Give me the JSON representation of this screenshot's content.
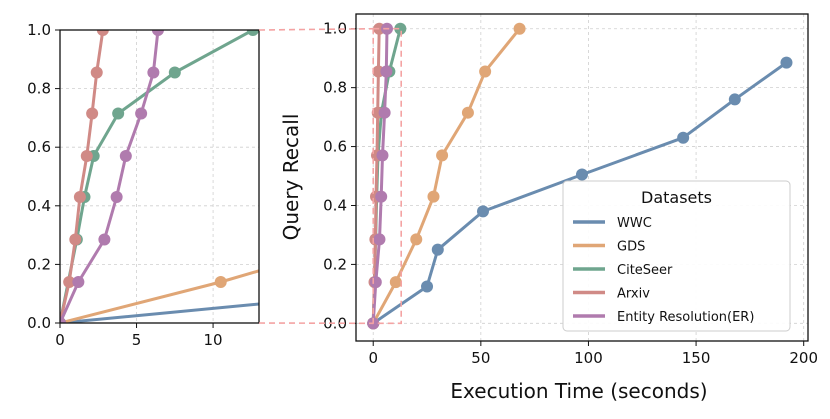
{
  "chart_data": {
    "type": "line",
    "xlabel": "Execution Time (seconds)",
    "ylabel": "Query Recall",
    "legend": {
      "title": "Datasets",
      "placement": "lower-right"
    },
    "main": {
      "xlim": [
        -8,
        202
      ],
      "ylim": [
        -0.06,
        1.05
      ],
      "xticks": [
        "0",
        "50",
        "100",
        "150",
        "200"
      ],
      "yticks": [
        "0.0",
        "0.2",
        "0.4",
        "0.6",
        "0.8",
        "1.0"
      ]
    },
    "inset": {
      "xlim": [
        0,
        13
      ],
      "ylim": [
        0,
        1.0
      ],
      "xticks": [
        "0",
        "5",
        "10"
      ],
      "yticks": [
        "0.0",
        "0.2",
        "0.4",
        "0.6",
        "0.8",
        "1.0"
      ]
    },
    "series": [
      {
        "name": "WWC",
        "color": "#6a8caf",
        "x": [
          0,
          25,
          30,
          51,
          97,
          144,
          168,
          192
        ],
        "y": [
          0,
          0.125,
          0.25,
          0.38,
          0.505,
          0.63,
          0.76,
          0.885
        ]
      },
      {
        "name": "GDS",
        "color": "#e0a676",
        "x": [
          0,
          10.5,
          20,
          28,
          32,
          44,
          52,
          68
        ],
        "y": [
          0,
          0.14,
          0.285,
          0.43,
          0.57,
          0.715,
          0.855,
          1.0
        ]
      },
      {
        "name": "CiteSeer",
        "color": "#6fa58e",
        "x": [
          0,
          1.1,
          1.6,
          2.2,
          3.8,
          7.5,
          12.6
        ],
        "y": [
          0,
          0.285,
          0.43,
          0.57,
          0.715,
          0.855,
          1.0
        ]
      },
      {
        "name": "Arxiv",
        "color": "#d08a86",
        "x": [
          0,
          0.6,
          1.0,
          1.3,
          1.75,
          2.1,
          2.4,
          2.8
        ],
        "y": [
          0,
          0.14,
          0.285,
          0.43,
          0.57,
          0.715,
          0.855,
          1.0
        ]
      },
      {
        "name": "Entity Resolution(ER)",
        "color": "#b07bae",
        "x": [
          0,
          1.2,
          2.9,
          3.7,
          4.3,
          5.3,
          6.1,
          6.4
        ],
        "y": [
          0,
          0.14,
          0.285,
          0.43,
          0.57,
          0.715,
          0.855,
          1.0
        ]
      }
    ]
  }
}
